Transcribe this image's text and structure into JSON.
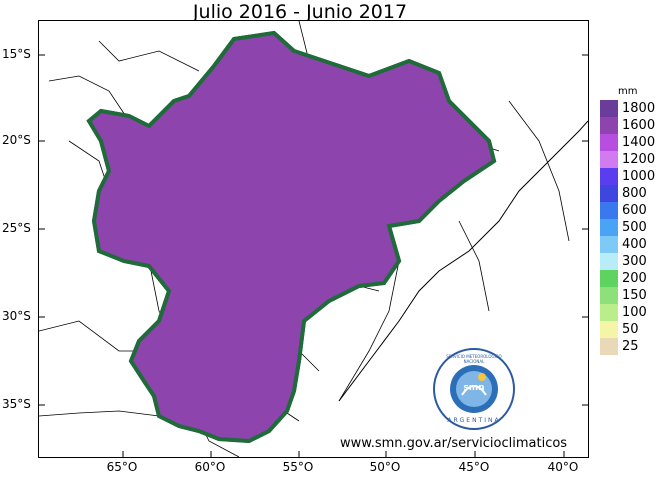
{
  "title": "Julio 2016 - Junio 2017",
  "latitude_labels": [
    "15°S",
    "20°S",
    "25°S",
    "30°S",
    "35°S"
  ],
  "longitude_labels": [
    "65°O",
    "60°O",
    "55°O",
    "50°O",
    "45°O",
    "40°O"
  ],
  "legend": {
    "unit": "mm",
    "items": [
      {
        "label": "1800",
        "color": "#6a3d9a"
      },
      {
        "label": "1600",
        "color": "#8e44ad"
      },
      {
        "label": "1400",
        "color": "#b84ee0"
      },
      {
        "label": "1200",
        "color": "#d27af0"
      },
      {
        "label": "1000",
        "color": "#5b3df0"
      },
      {
        "label": "800",
        "color": "#3f46e0"
      },
      {
        "label": "600",
        "color": "#3a78f0"
      },
      {
        "label": "500",
        "color": "#4aa3f5"
      },
      {
        "label": "400",
        "color": "#7dcaf7"
      },
      {
        "label": "300",
        "color": "#b9ecf9"
      },
      {
        "label": "200",
        "color": "#5fd35f"
      },
      {
        "label": "150",
        "color": "#8de07a"
      },
      {
        "label": "100",
        "color": "#b9ee8a"
      },
      {
        "label": "50",
        "color": "#f5f5a8"
      },
      {
        "label": "25",
        "color": "#ead9b8"
      }
    ]
  },
  "source_url": "www.smn.gov.ar/servicioclimaticos",
  "logo": {
    "text_top": "SERVICIO METEOROLOGICO NACIONAL",
    "text_bottom": "ARGENTINA",
    "center_text": "smn"
  },
  "colors": {
    "basin_outline": "#1f6b3a",
    "border_lines": "#000000"
  }
}
